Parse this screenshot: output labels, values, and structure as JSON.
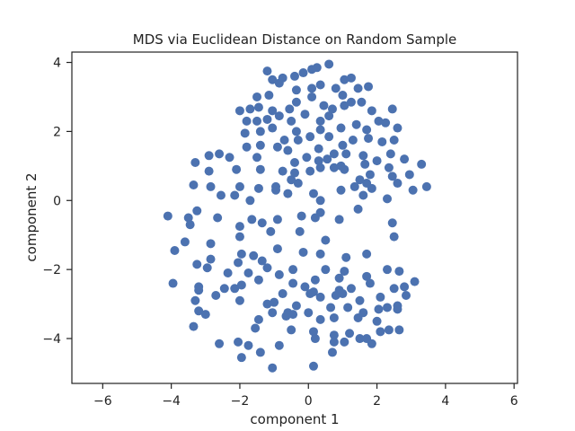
{
  "chart_data": {
    "type": "scatter",
    "title": "MDS via Euclidean Distance on Random Sample",
    "xlabel": "component 1",
    "ylabel": "component 2",
    "xlim": [
      -6.9,
      6.1
    ],
    "ylim": [
      -5.3,
      4.3
    ],
    "xticks": [
      -6,
      -4,
      -2,
      0,
      2,
      4,
      6
    ],
    "yticks": [
      -4,
      -2,
      0,
      2,
      4
    ],
    "xtick_labels": [
      "−6",
      "−4",
      "−2",
      "0",
      "2",
      "4",
      "6"
    ],
    "ytick_labels": [
      "−4",
      "−2",
      "0",
      "2",
      "4"
    ],
    "grid": false,
    "legend": "none",
    "color": "#4c72b0",
    "series": [
      {
        "points": [
          [
            -1.2,
            3.75
          ],
          [
            -1.05,
            3.5
          ],
          [
            -0.75,
            3.55
          ],
          [
            -0.4,
            3.6
          ],
          [
            -0.15,
            3.7
          ],
          [
            0.1,
            3.8
          ],
          [
            0.25,
            3.85
          ],
          [
            0.6,
            3.95
          ],
          [
            1.05,
            3.5
          ],
          [
            1.25,
            3.55
          ],
          [
            -1.5,
            3.0
          ],
          [
            -1.15,
            3.05
          ],
          [
            -0.85,
            3.4
          ],
          [
            -0.35,
            3.2
          ],
          [
            0.1,
            3.25
          ],
          [
            0.35,
            3.35
          ],
          [
            0.8,
            3.25
          ],
          [
            1.0,
            3.05
          ],
          [
            1.45,
            3.25
          ],
          [
            1.75,
            3.3
          ],
          [
            -2.0,
            2.6
          ],
          [
            -1.7,
            2.65
          ],
          [
            -1.45,
            2.7
          ],
          [
            -1.05,
            2.6
          ],
          [
            -0.55,
            2.65
          ],
          [
            -0.35,
            2.85
          ],
          [
            0.1,
            3.0
          ],
          [
            0.45,
            2.75
          ],
          [
            0.7,
            2.65
          ],
          [
            1.05,
            2.75
          ],
          [
            1.25,
            2.85
          ],
          [
            1.55,
            2.85
          ],
          [
            1.85,
            2.6
          ],
          [
            2.45,
            2.65
          ],
          [
            -1.8,
            2.3
          ],
          [
            -1.5,
            2.3
          ],
          [
            -1.2,
            2.35
          ],
          [
            -0.85,
            2.45
          ],
          [
            -0.5,
            2.3
          ],
          [
            -0.1,
            2.5
          ],
          [
            0.35,
            2.3
          ],
          [
            0.6,
            2.45
          ],
          [
            0.95,
            2.1
          ],
          [
            1.4,
            2.2
          ],
          [
            1.7,
            2.05
          ],
          [
            2.05,
            2.3
          ],
          [
            2.25,
            2.25
          ],
          [
            2.6,
            2.1
          ],
          [
            -1.85,
            1.95
          ],
          [
            -1.4,
            2.0
          ],
          [
            -1.05,
            2.1
          ],
          [
            -0.7,
            1.75
          ],
          [
            -0.35,
            2.0
          ],
          [
            0.05,
            1.85
          ],
          [
            0.35,
            2.05
          ],
          [
            0.6,
            1.85
          ],
          [
            1.0,
            1.6
          ],
          [
            1.3,
            1.75
          ],
          [
            1.75,
            1.8
          ],
          [
            2.15,
            1.7
          ],
          [
            2.5,
            1.75
          ],
          [
            -2.9,
            1.3
          ],
          [
            -2.6,
            1.35
          ],
          [
            -1.8,
            1.55
          ],
          [
            -1.4,
            1.6
          ],
          [
            -0.9,
            1.55
          ],
          [
            -0.6,
            1.45
          ],
          [
            -0.3,
            1.75
          ],
          [
            0.3,
            1.5
          ],
          [
            0.75,
            1.35
          ],
          [
            1.1,
            1.35
          ],
          [
            1.6,
            1.3
          ],
          [
            2.0,
            1.15
          ],
          [
            2.4,
            1.35
          ],
          [
            2.8,
            1.2
          ],
          [
            -3.3,
            1.1
          ],
          [
            -2.3,
            1.25
          ],
          [
            -1.5,
            1.25
          ],
          [
            -0.4,
            1.1
          ],
          [
            -0.05,
            1.25
          ],
          [
            0.3,
            1.15
          ],
          [
            0.55,
            1.2
          ],
          [
            0.95,
            1.0
          ],
          [
            1.65,
            1.05
          ],
          [
            2.35,
            0.95
          ],
          [
            3.3,
            1.05
          ],
          [
            -2.9,
            0.85
          ],
          [
            -2.1,
            0.9
          ],
          [
            -1.4,
            0.9
          ],
          [
            -0.75,
            0.85
          ],
          [
            -0.4,
            0.8
          ],
          [
            0.05,
            0.85
          ],
          [
            0.35,
            0.95
          ],
          [
            0.75,
            0.95
          ],
          [
            1.05,
            0.9
          ],
          [
            1.5,
            0.6
          ],
          [
            1.8,
            0.75
          ],
          [
            2.45,
            0.7
          ],
          [
            2.95,
            0.75
          ],
          [
            -3.35,
            0.45
          ],
          [
            -2.85,
            0.4
          ],
          [
            -2.0,
            0.4
          ],
          [
            -1.45,
            0.35
          ],
          [
            -0.95,
            0.4
          ],
          [
            -0.5,
            0.6
          ],
          [
            -0.3,
            0.5
          ],
          [
            0.15,
            0.2
          ],
          [
            0.95,
            0.3
          ],
          [
            1.35,
            0.4
          ],
          [
            1.7,
            0.5
          ],
          [
            1.85,
            0.35
          ],
          [
            2.6,
            0.5
          ],
          [
            3.05,
            0.3
          ],
          [
            3.45,
            0.4
          ],
          [
            -2.55,
            0.15
          ],
          [
            -2.15,
            0.15
          ],
          [
            -1.7,
            0.0
          ],
          [
            -0.95,
            0.3
          ],
          [
            -0.6,
            0.2
          ],
          [
            0.35,
            0.0
          ],
          [
            1.6,
            0.15
          ],
          [
            2.3,
            0.05
          ],
          [
            -4.1,
            -0.45
          ],
          [
            -3.5,
            -0.5
          ],
          [
            -3.25,
            -0.3
          ],
          [
            -2.65,
            -0.5
          ],
          [
            -2.0,
            -0.75
          ],
          [
            -1.65,
            -0.55
          ],
          [
            -1.35,
            -0.65
          ],
          [
            -0.9,
            -0.55
          ],
          [
            -0.2,
            -0.45
          ],
          [
            0.2,
            -0.5
          ],
          [
            0.35,
            -0.35
          ],
          [
            0.9,
            -0.55
          ],
          [
            1.45,
            -0.25
          ],
          [
            2.45,
            -0.65
          ],
          [
            2.5,
            -1.05
          ],
          [
            -3.45,
            -0.7
          ],
          [
            -3.6,
            -1.2
          ],
          [
            -2.85,
            -1.25
          ],
          [
            -2.0,
            -1.05
          ],
          [
            -1.1,
            -0.9
          ],
          [
            -0.25,
            -0.9
          ],
          [
            0.5,
            -1.15
          ],
          [
            -3.9,
            -1.45
          ],
          [
            -2.85,
            -1.7
          ],
          [
            -1.95,
            -1.55
          ],
          [
            -1.6,
            -1.6
          ],
          [
            -0.9,
            -1.4
          ],
          [
            -0.15,
            -1.5
          ],
          [
            0.35,
            -1.55
          ],
          [
            1.1,
            -1.65
          ],
          [
            1.7,
            -1.55
          ],
          [
            -2.95,
            -1.95
          ],
          [
            -2.05,
            -1.8
          ],
          [
            -1.75,
            -2.1
          ],
          [
            -1.35,
            -1.75
          ],
          [
            -1.2,
            -1.95
          ],
          [
            -0.45,
            -2.0
          ],
          [
            0.2,
            -2.3
          ],
          [
            0.5,
            -2.0
          ],
          [
            -3.25,
            -1.85
          ],
          [
            -2.35,
            -2.1
          ],
          [
            -1.45,
            -2.3
          ],
          [
            -0.85,
            -2.15
          ],
          [
            -0.45,
            -2.4
          ],
          [
            0.9,
            -2.25
          ],
          [
            1.05,
            -2.05
          ],
          [
            1.7,
            -2.2
          ],
          [
            2.3,
            -2.0
          ],
          [
            2.65,
            -2.05
          ],
          [
            2.8,
            -2.5
          ],
          [
            3.1,
            -2.35
          ],
          [
            -3.95,
            -2.4
          ],
          [
            -3.2,
            -2.5
          ],
          [
            -2.45,
            -2.55
          ],
          [
            -2.15,
            -2.55
          ],
          [
            -1.95,
            -2.45
          ],
          [
            -0.1,
            -2.5
          ],
          [
            0.35,
            -2.8
          ],
          [
            0.9,
            -2.6
          ],
          [
            1.25,
            -2.55
          ],
          [
            1.8,
            -2.4
          ],
          [
            2.5,
            -2.55
          ],
          [
            2.85,
            -2.75
          ],
          [
            -3.2,
            -2.6
          ],
          [
            -3.2,
            -3.2
          ],
          [
            -2.7,
            -2.75
          ],
          [
            -2.0,
            -2.9
          ],
          [
            -1.2,
            -3.0
          ],
          [
            -0.75,
            -2.7
          ],
          [
            -0.35,
            -3.05
          ],
          [
            0.15,
            -2.65
          ],
          [
            0.8,
            -2.75
          ],
          [
            1.5,
            -2.9
          ],
          [
            2.1,
            -2.8
          ],
          [
            2.6,
            -3.05
          ],
          [
            -3.3,
            -2.9
          ],
          [
            -1.0,
            -2.95
          ],
          [
            -0.6,
            -3.25
          ],
          [
            0.05,
            -2.7
          ],
          [
            0.65,
            -3.1
          ],
          [
            1.0,
            -2.7
          ],
          [
            1.45,
            -3.4
          ],
          [
            2.3,
            -3.1
          ],
          [
            2.6,
            -3.15
          ],
          [
            -3.0,
            -3.3
          ],
          [
            -1.45,
            -3.45
          ],
          [
            -1.05,
            -3.25
          ],
          [
            -0.65,
            -3.35
          ],
          [
            -0.45,
            -3.3
          ],
          [
            0.0,
            -3.25
          ],
          [
            0.35,
            -3.45
          ],
          [
            0.75,
            -3.4
          ],
          [
            1.15,
            -3.1
          ],
          [
            1.6,
            -3.25
          ],
          [
            2.05,
            -3.15
          ],
          [
            2.0,
            -3.5
          ],
          [
            -3.35,
            -3.65
          ],
          [
            -1.55,
            -3.7
          ],
          [
            -0.5,
            -3.75
          ],
          [
            0.15,
            -3.8
          ],
          [
            0.75,
            -3.9
          ],
          [
            1.2,
            -3.85
          ],
          [
            1.5,
            -4.0
          ],
          [
            1.7,
            -4.0
          ],
          [
            2.1,
            -3.8
          ],
          [
            2.35,
            -3.75
          ],
          [
            2.65,
            -3.75
          ],
          [
            -2.6,
            -4.15
          ],
          [
            -2.05,
            -4.1
          ],
          [
            -1.75,
            -4.2
          ],
          [
            -0.85,
            -4.2
          ],
          [
            0.2,
            -4.0
          ],
          [
            0.75,
            -4.1
          ],
          [
            1.05,
            -4.1
          ],
          [
            1.85,
            -4.15
          ],
          [
            -1.95,
            -4.55
          ],
          [
            -1.4,
            -4.4
          ],
          [
            0.7,
            -4.4
          ],
          [
            -1.05,
            -4.85
          ],
          [
            0.15,
            -4.8
          ]
        ]
      }
    ]
  }
}
